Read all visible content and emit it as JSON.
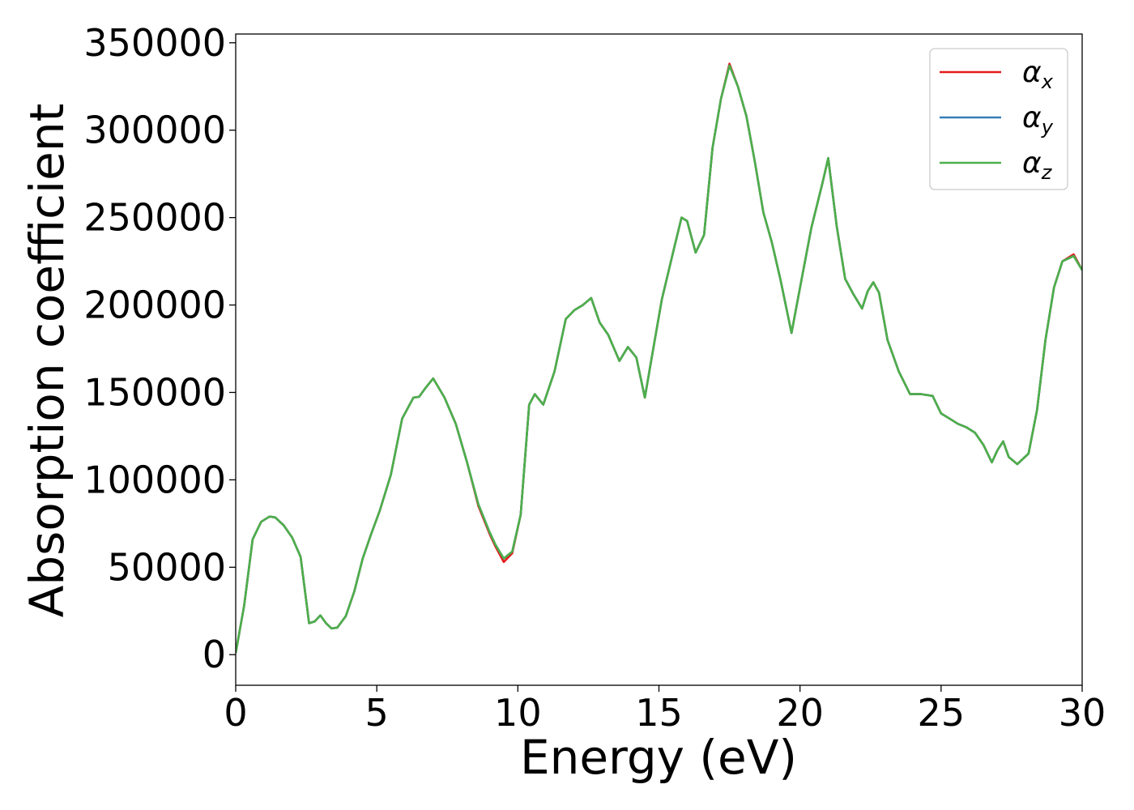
{
  "chart_data": {
    "type": "line",
    "title": "",
    "xlabel": "Energy (eV)",
    "ylabel": "Absorption coefficient",
    "xlim": [
      0,
      30
    ],
    "ylim": [
      -17500,
      355000
    ],
    "xticks": [
      "0",
      "5",
      "10",
      "15",
      "20",
      "25",
      "30"
    ],
    "yticks": [
      "0",
      "50000",
      "100000",
      "150000",
      "200000",
      "250000",
      "300000",
      "350000"
    ],
    "grid": false,
    "legend_position": "top-right",
    "x": [
      0,
      0.3,
      0.6,
      0.9,
      1.2,
      1.4,
      1.7,
      2.0,
      2.3,
      2.6,
      2.8,
      3.0,
      3.2,
      3.4,
      3.6,
      3.9,
      4.2,
      4.5,
      4.8,
      5.1,
      5.5,
      5.9,
      6.3,
      6.5,
      6.7,
      7.0,
      7.4,
      7.8,
      8.2,
      8.6,
      9.0,
      9.2,
      9.5,
      9.8,
      10.1,
      10.4,
      10.6,
      10.9,
      11.3,
      11.7,
      12.0,
      12.3,
      12.6,
      12.9,
      13.2,
      13.6,
      13.9,
      14.2,
      14.5,
      14.8,
      15.1,
      15.5,
      15.8,
      16.0,
      16.3,
      16.6,
      16.9,
      17.2,
      17.5,
      17.8,
      18.1,
      18.4,
      18.7,
      19.0,
      19.3,
      19.7,
      20.0,
      20.4,
      20.8,
      21.0,
      21.3,
      21.6,
      21.9,
      22.2,
      22.4,
      22.6,
      22.8,
      23.1,
      23.5,
      23.9,
      24.3,
      24.7,
      25.0,
      25.3,
      25.6,
      25.9,
      26.2,
      26.5,
      26.8,
      27.0,
      27.2,
      27.4,
      27.7,
      28.1,
      28.4,
      28.7,
      29.0,
      29.3,
      29.7,
      30.0
    ],
    "series": [
      {
        "name": "αx",
        "color": "#e41a1c",
        "values": [
          1000,
          28000,
          66000,
          76000,
          79000,
          78500,
          74000,
          67000,
          56000,
          18000,
          19000,
          22500,
          18000,
          15000,
          15500,
          22000,
          36000,
          55000,
          69000,
          82000,
          103000,
          135000,
          147000,
          147500,
          152000,
          158000,
          147000,
          132000,
          110000,
          85000,
          69000,
          62000,
          53000,
          58000,
          80000,
          143000,
          149000,
          143000,
          162000,
          192000,
          197000,
          200000,
          204000,
          190000,
          183000,
          168000,
          176000,
          170000,
          147000,
          175000,
          203000,
          230000,
          250000,
          248000,
          230000,
          240000,
          290000,
          318000,
          338000,
          325000,
          308000,
          282000,
          253000,
          236000,
          215000,
          184000,
          210000,
          244000,
          270000,
          284000,
          245000,
          215000,
          206000,
          198000,
          208000,
          213000,
          207000,
          180000,
          162000,
          149000,
          149000,
          148000,
          138000,
          135000,
          132000,
          130000,
          127000,
          120000,
          110000,
          117000,
          122000,
          113000,
          109000,
          115000,
          140000,
          180000,
          210000,
          225000,
          229000,
          220000
        ]
      },
      {
        "name": "αy",
        "color": "#377eb8",
        "values": [
          1000,
          28000,
          66000,
          76000,
          79000,
          78500,
          74000,
          67000,
          56000,
          18000,
          19000,
          22500,
          18000,
          15000,
          15500,
          22000,
          36000,
          55000,
          69000,
          82000,
          103000,
          135000,
          147000,
          147500,
          152000,
          158000,
          147000,
          132000,
          110000,
          86000,
          70000,
          63000,
          55000,
          59000,
          80000,
          143000,
          149000,
          143000,
          162000,
          192000,
          197000,
          200000,
          204000,
          190000,
          183000,
          168000,
          176000,
          170000,
          147000,
          175000,
          203000,
          230000,
          250000,
          248000,
          230000,
          240000,
          290000,
          318000,
          337000,
          325000,
          308000,
          282000,
          253000,
          236000,
          215000,
          184000,
          210000,
          244000,
          270000,
          284000,
          245000,
          215000,
          206000,
          198000,
          208000,
          213000,
          207000,
          180000,
          162000,
          149000,
          149000,
          148000,
          138000,
          135000,
          132000,
          130000,
          127000,
          120000,
          110000,
          117000,
          122000,
          113000,
          109000,
          115000,
          140000,
          180000,
          210000,
          225000,
          228000,
          220000
        ]
      },
      {
        "name": "αz",
        "color": "#4daf4a",
        "values": [
          1000,
          28000,
          66000,
          76000,
          79000,
          78500,
          74000,
          67000,
          56000,
          18000,
          19000,
          22500,
          18000,
          15000,
          15500,
          22000,
          36000,
          55000,
          69000,
          82000,
          103000,
          135000,
          147000,
          147500,
          152000,
          158000,
          147000,
          132000,
          110000,
          86000,
          70000,
          63000,
          55000,
          59000,
          80000,
          143000,
          149000,
          143000,
          162000,
          192000,
          197000,
          200000,
          204000,
          190000,
          183000,
          168000,
          176000,
          170000,
          147000,
          175000,
          203000,
          230000,
          250000,
          248000,
          230000,
          240000,
          290000,
          318000,
          337000,
          325000,
          308000,
          282000,
          253000,
          236000,
          215000,
          184000,
          210000,
          244000,
          270000,
          284000,
          245000,
          215000,
          206000,
          198000,
          208000,
          213000,
          207000,
          180000,
          162000,
          149000,
          149000,
          148000,
          138000,
          135000,
          132000,
          130000,
          127000,
          120000,
          110000,
          117000,
          122000,
          113000,
          109000,
          115000,
          140000,
          180000,
          210000,
          225000,
          228000,
          220000
        ]
      }
    ],
    "legend": [
      {
        "symbol": "α",
        "sub": "x",
        "color": "#e41a1c"
      },
      {
        "symbol": "α",
        "sub": "y",
        "color": "#377eb8"
      },
      {
        "symbol": "α",
        "sub": "z",
        "color": "#4daf4a"
      }
    ]
  }
}
